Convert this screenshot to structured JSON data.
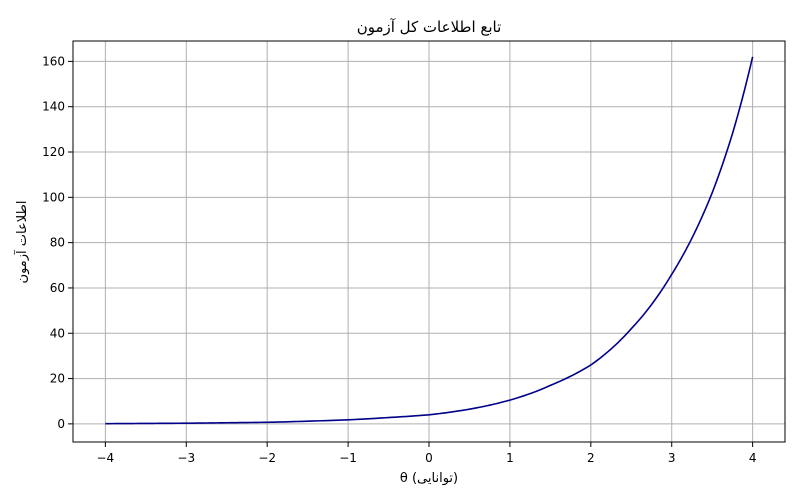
{
  "chart_data": {
    "type": "line",
    "title": "تابع اطلاعات کل آزمون",
    "xlabel": "θ (توانایی)",
    "ylabel": "اطلاعات آزمون",
    "xlim": [
      -4.4,
      4.4
    ],
    "ylim": [
      -8,
      169
    ],
    "x_ticks": [
      -4,
      -3,
      -2,
      -1,
      0,
      1,
      2,
      3,
      4
    ],
    "x_tick_labels": [
      "−4",
      "−3",
      "−2",
      "−1",
      "0",
      "1",
      "2",
      "3",
      "4"
    ],
    "y_ticks": [
      0,
      20,
      40,
      60,
      80,
      100,
      120,
      140,
      160
    ],
    "y_tick_labels": [
      "0",
      "20",
      "40",
      "60",
      "80",
      "100",
      "120",
      "140",
      "160"
    ],
    "grid": true,
    "legend": "none",
    "series": [
      {
        "color": "#00008b",
        "x": [
          -4,
          -3.5,
          -3,
          -2.5,
          -2,
          -1.5,
          -1,
          -0.5,
          0,
          0.5,
          1,
          1.5,
          2,
          2.5,
          3,
          3.25,
          3.5,
          3.75,
          4
        ],
        "y": [
          0.1,
          0.2,
          0.3,
          0.5,
          0.7,
          1.2,
          1.8,
          2.8,
          4.0,
          6.5,
          10.5,
          17,
          26,
          42,
          66,
          82,
          102,
          128,
          162
        ]
      }
    ]
  }
}
